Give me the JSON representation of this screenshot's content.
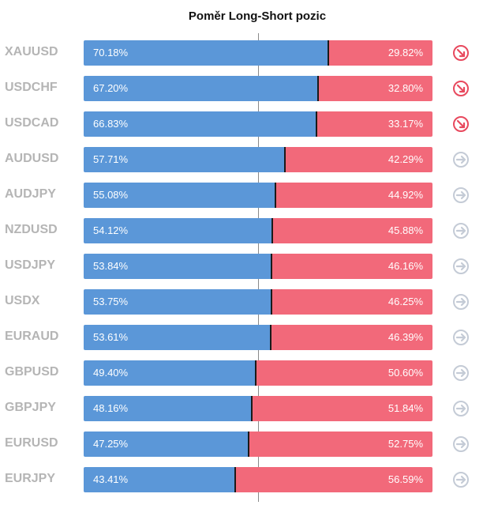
{
  "chart_data": {
    "type": "bar",
    "title": "Poměr Long-Short pozic",
    "categories": [
      "XAUUSD",
      "USDCHF",
      "USDCAD",
      "AUDUSD",
      "AUDJPY",
      "NZDUSD",
      "USDJPY",
      "USDX",
      "EURAUD",
      "GBPUSD",
      "GBPJPY",
      "EURUSD",
      "EURJPY"
    ],
    "series": [
      {
        "name": "",
        "values": [
          70.18,
          67.2,
          66.83,
          57.71,
          55.08,
          54.12,
          53.84,
          53.75,
          53.61,
          49.4,
          48.16,
          47.25,
          43.41
        ]
      },
      {
        "name": "",
        "values": [
          29.82,
          32.8,
          33.17,
          42.29,
          44.92,
          45.88,
          46.16,
          46.25,
          46.39,
          50.6,
          51.84,
          52.75,
          56.59
        ]
      }
    ],
    "long_labels": [
      "70.18%",
      "67.20%",
      "66.83%",
      "57.71%",
      "55.08%",
      "54.12%",
      "53.84%",
      "53.75%",
      "53.61%",
      "49.40%",
      "48.16%",
      "47.25%",
      "43.41%"
    ],
    "short_labels": [
      "29.82%",
      "32.80%",
      "33.17%",
      "42.29%",
      "44.92%",
      "45.88%",
      "46.16%",
      "46.25%",
      "46.39%",
      "50.60%",
      "51.84%",
      "52.75%",
      "56.59%"
    ],
    "xlim": [
      0,
      100
    ],
    "stacked": true,
    "orientation": "horizontal",
    "grid": false,
    "signals": [
      "sell-arrow-icon",
      "sell-arrow-icon",
      "sell-arrow-icon",
      "neutral-arrow-icon",
      "neutral-arrow-icon",
      "neutral-arrow-icon",
      "neutral-arrow-icon",
      "neutral-arrow-icon",
      "neutral-arrow-icon",
      "neutral-arrow-icon",
      "neutral-arrow-icon",
      "neutral-arrow-icon",
      "neutral-arrow-icon"
    ]
  },
  "colors": {
    "long": "#5b97d8",
    "short": "#f2697a",
    "sell_icon": "#e8495e",
    "neutral_icon": "#c4cbd6",
    "symbol_text": "#b5b5b5"
  }
}
